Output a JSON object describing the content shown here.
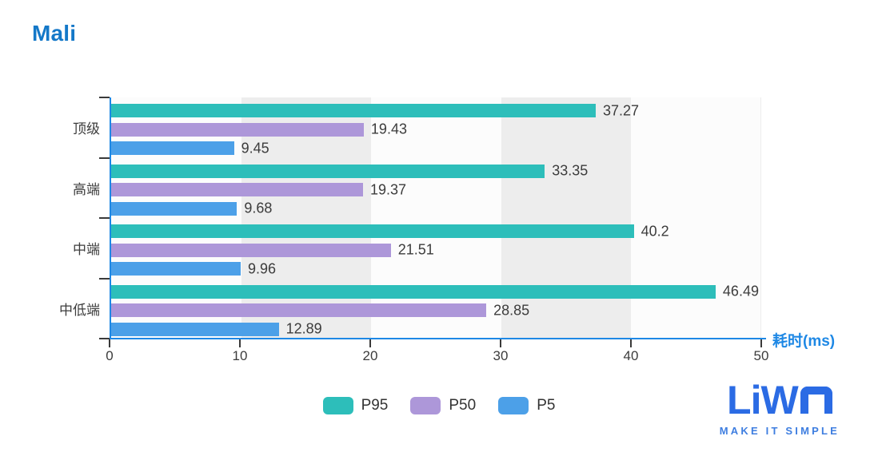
{
  "header": {
    "title": "Mali",
    "title_color": "#1478C8"
  },
  "chart_data": {
    "type": "bar",
    "orientation": "horizontal",
    "title": "Mali",
    "categories": [
      "顶级",
      "高端",
      "中端",
      "中低端"
    ],
    "series": [
      {
        "name": "P95",
        "color": "#2DBEBA",
        "values": [
          37.27,
          33.35,
          40.2,
          46.49
        ]
      },
      {
        "name": "P50",
        "color": "#AD97D9",
        "values": [
          19.43,
          19.37,
          21.51,
          28.85
        ]
      },
      {
        "name": "P5",
        "color": "#4CA0E8",
        "values": [
          9.45,
          9.68,
          9.96,
          12.89
        ]
      }
    ],
    "xlabel": "耗时(ms)",
    "xlim": [
      0,
      50
    ],
    "x_ticks": [
      0,
      10,
      20,
      30,
      40,
      50
    ],
    "legend_position": "bottom",
    "legend_labels": [
      "P95",
      "P50",
      "P5"
    ],
    "value_labels_shown": true,
    "axis_line_color": "#1E88E5",
    "axis_name_color": "#1E88E5",
    "tick_mark_color": "#3A3A3A",
    "text_color": "#3C3C3C",
    "split_area_colors": [
      "rgba(250,250,250,0.55)",
      "rgba(203,203,203,0.35)"
    ],
    "grid_on": false
  },
  "logo": {
    "wordmark": "LiWA",
    "tagline": "MAKE IT SIMPLE",
    "color": "#2B6BE4",
    "tagline_color": "#3E7EE0"
  }
}
